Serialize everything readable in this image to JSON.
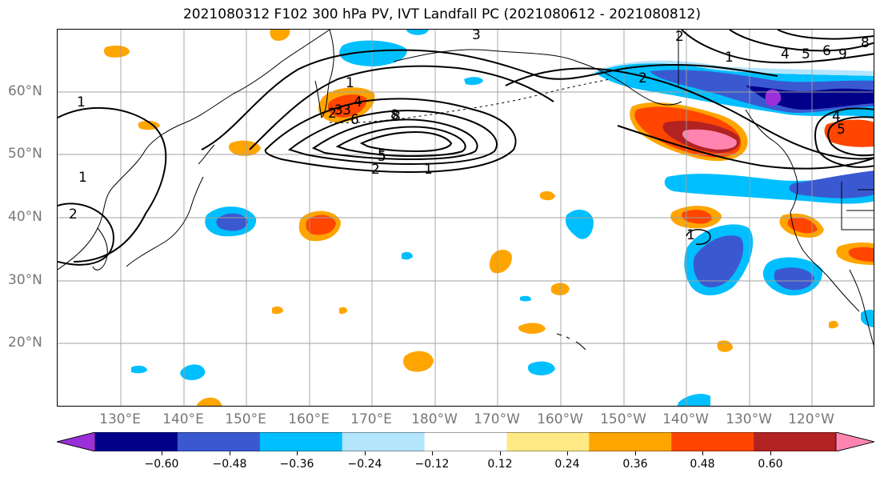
{
  "title": "2021080312 F102 300 hPa PV, IVT Landfall PC (2021080612 - 2021080812)",
  "map": {
    "lat_labels": [
      "60°N",
      "50°N",
      "40°N",
      "30°N",
      "20°N"
    ],
    "lon_labels": [
      "130°E",
      "140°E",
      "150°E",
      "160°E",
      "170°E",
      "180°W",
      "170°W",
      "160°W",
      "150°W",
      "140°W",
      "130°W",
      "120°W"
    ],
    "contour_labels": [
      "1",
      "2",
      "3",
      "5",
      "8",
      "1",
      "2",
      "5",
      "8",
      "6",
      "4",
      "3",
      "2",
      "1",
      "1",
      "2",
      "3",
      "4",
      "5",
      "6",
      "8",
      "9",
      "1",
      "2",
      "1",
      "5",
      "4"
    ],
    "colors": {
      "positive_strong": "#ff85b0",
      "positive_high": "#b22222",
      "positive_mid": "#ff4500",
      "positive_low": "#ffa500",
      "positive_min": "#ffe985",
      "negative_min": "#b3e5fc",
      "negative_low": "#00bfff",
      "negative_mid": "#3a59d1",
      "negative_high": "#00008b",
      "negative_strong": "#9b30d9"
    }
  },
  "colorbar": {
    "ticks": [
      "−0.60",
      "−0.48",
      "−0.36",
      "−0.24",
      "−0.12",
      "0.12",
      "0.24",
      "0.36",
      "0.48",
      "0.60"
    ],
    "colors": [
      "#9b30d9",
      "#00008b",
      "#3a59d1",
      "#00bfff",
      "#b3e5fc",
      "#ffffff",
      "#ffe985",
      "#ffa500",
      "#ff4500",
      "#b22222",
      "#ff85b0"
    ]
  }
}
